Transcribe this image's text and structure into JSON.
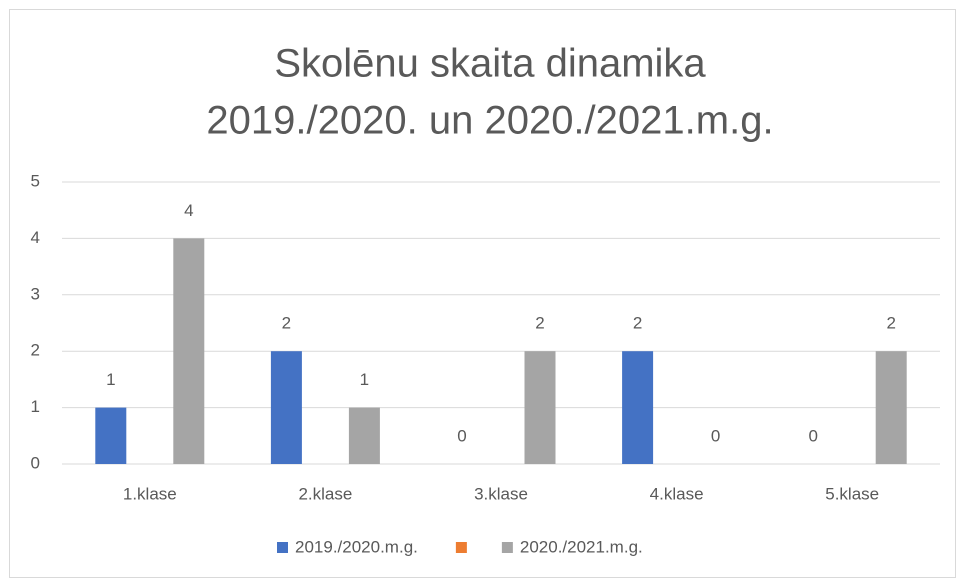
{
  "chart_data": {
    "type": "bar",
    "title": [
      "Skolēnu skaita dinamika",
      "2019./2020. un 2020./2021.m.g."
    ],
    "categories": [
      "1.klase",
      "2.klase",
      "3.klase",
      "4.klase",
      "5.klase"
    ],
    "series": [
      {
        "name": "2019./2020.m.g.",
        "color": "#4472c4",
        "values": [
          1,
          2,
          0,
          2,
          0
        ]
      },
      {
        "color": "#ed7d31",
        "values": [
          null,
          null,
          null,
          null,
          null
        ]
      },
      {
        "name": "2020./2021.m.g.",
        "color": "#a5a5a5",
        "values": [
          4,
          1,
          2,
          0,
          2
        ]
      }
    ],
    "ylim": [
      0,
      5
    ],
    "yticks": [
      0,
      1,
      2,
      3,
      4,
      5
    ],
    "grid": true,
    "legend": "bottom"
  }
}
